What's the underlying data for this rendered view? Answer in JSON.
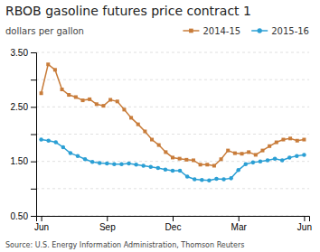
{
  "chart_data": {
    "type": "line",
    "title": "RBOB gasoline futures price contract 1",
    "ylabel": "dollars per gallon",
    "annotations": [
      "Source: U.S. Energy Information Administration, Thomson Reuters"
    ],
    "xlim": [
      -1,
      53
    ],
    "xticks": [
      {
        "value": 0,
        "label": "Jun"
      },
      {
        "value": 13,
        "label": "Sep"
      },
      {
        "value": 26,
        "label": "Dec"
      },
      {
        "value": 39,
        "label": "Mar"
      },
      {
        "value": 52,
        "label": "Jun"
      }
    ],
    "ylim": [
      0.5,
      3.5
    ],
    "yticks": [
      {
        "value": 0.5,
        "label": "0.50"
      },
      {
        "value": 1.0,
        "label": null
      },
      {
        "value": 1.5,
        "label": "1.50"
      },
      {
        "value": 2.0,
        "label": null
      },
      {
        "value": 2.5,
        "label": "2.50"
      },
      {
        "value": 3.0,
        "label": null
      },
      {
        "value": 3.5,
        "label": "3.50"
      }
    ],
    "grid": true,
    "legend": "upper right",
    "series": [
      {
        "name": "2014-15",
        "color": "#c87c3a",
        "marker": "square",
        "x": [
          0,
          1.3684,
          2.7368,
          4.1053,
          5.4737,
          6.8421,
          8.2105,
          9.5789,
          10.9474,
          12.3158,
          13.6842,
          15.0526,
          16.4211,
          17.7895,
          19.1579,
          20.5263,
          21.8947,
          23.2632,
          24.6316,
          26,
          27.3684,
          28.7368,
          30.1053,
          31.4737,
          32.8421,
          34.2105,
          35.5789,
          36.9474,
          38.3158,
          39.6842,
          41.0526,
          42.4211,
          43.7895,
          45.1579,
          46.5263,
          47.8947,
          49.2632,
          50.6316,
          52
        ],
        "values": [
          2.75,
          3.28,
          3.18,
          2.82,
          2.72,
          2.68,
          2.62,
          2.64,
          2.55,
          2.52,
          2.63,
          2.6,
          2.45,
          2.3,
          2.18,
          2.05,
          1.9,
          1.8,
          1.67,
          1.57,
          1.55,
          1.53,
          1.52,
          1.44,
          1.44,
          1.42,
          1.54,
          1.7,
          1.65,
          1.64,
          1.67,
          1.62,
          1.7,
          1.78,
          1.85,
          1.9,
          1.92,
          1.88,
          1.9
        ]
      },
      {
        "name": "2015-16",
        "color": "#2b9fd4",
        "marker": "circle",
        "x": [
          0,
          1.4444,
          2.8889,
          4.3333,
          5.7778,
          7.2222,
          8.6667,
          10.1111,
          11.5556,
          13,
          14.4444,
          15.8889,
          17.3333,
          18.7778,
          20.2222,
          21.6667,
          23.1111,
          24.5556,
          26,
          27.4444,
          28.8889,
          30.3333,
          31.7778,
          33.2222,
          34.6667,
          36.1111,
          37.5556,
          39,
          40.4444,
          41.8889,
          43.3333,
          44.7778,
          46.2222,
          47.6667,
          49.1111,
          50.5556,
          52
        ],
        "values": [
          1.9,
          1.88,
          1.85,
          1.76,
          1.65,
          1.6,
          1.54,
          1.49,
          1.47,
          1.46,
          1.45,
          1.45,
          1.46,
          1.44,
          1.42,
          1.4,
          1.38,
          1.35,
          1.33,
          1.33,
          1.22,
          1.17,
          1.16,
          1.15,
          1.18,
          1.17,
          1.19,
          1.34,
          1.45,
          1.48,
          1.5,
          1.52,
          1.55,
          1.52,
          1.57,
          1.6,
          1.62
        ]
      }
    ]
  }
}
